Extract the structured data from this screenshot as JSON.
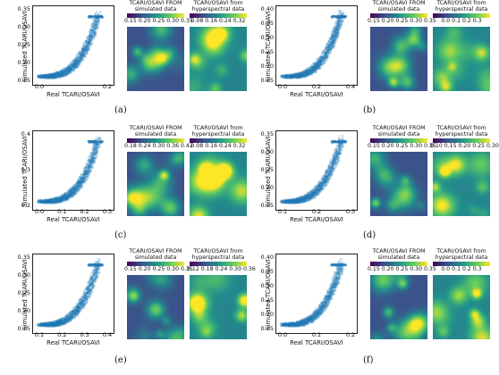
{
  "panels": [
    {
      "id": "a",
      "label": "(a)",
      "xlabel": "Real TCARI/OSAVI",
      "ylabel": "Simulated TCARI/OSAVI",
      "yticks": [
        "0.35",
        "0.30",
        "0.25",
        "0.20",
        "0.15"
      ],
      "xticks": [
        "0.0",
        "0.2"
      ],
      "map1": {
        "title1": "TCARI/OSAVI FROM",
        "title2": "simulated data",
        "ticks": "0.15 0.20 0.25 0.30 0.35"
      },
      "map2": {
        "title1": "TCARI/OSAVI from",
        "title2": "hyperspectral data",
        "ticks": "0.08 0.16 0.24 0.32"
      }
    },
    {
      "id": "b",
      "label": "(b)",
      "xlabel": "Real TCARI/OSAVI",
      "ylabel": "Simulated TCARI/OSAVI",
      "yticks": [
        "0.40",
        "0.35",
        "0.30",
        "0.25",
        "0.20",
        "0.15"
      ],
      "xticks": [
        "0.0",
        "0.2",
        "0.4"
      ],
      "map1": {
        "title1": "TCARI/OSAVI FROM",
        "title2": "simulated data",
        "ticks": "0.15 0.20 0.25 0.30 0.35"
      },
      "map2": {
        "title1": "TCARI/OSAVI from",
        "title2": "hyperspectral data",
        "ticks": "0.0  0.1  0.2  0.3"
      }
    },
    {
      "id": "c",
      "label": "(c)",
      "xlabel": "Real TCARI/OSAVI",
      "ylabel": "Simulated TCARI/OSAVI",
      "yticks": [
        "0.4",
        "0.3",
        "0.2"
      ],
      "xticks": [
        "0.0",
        "0.1",
        "0.2",
        "0.3"
      ],
      "map1": {
        "title1": "TCARI/OSAVI FROM",
        "title2": "simulated data",
        "ticks": "0.18 0.24 0.30 0.36 0.42"
      },
      "map2": {
        "title1": "TCARI/OSAVI from",
        "title2": "hyperspectral data",
        "ticks": "0.08 0.16 0.24 0.32"
      }
    },
    {
      "id": "d",
      "label": "(d)",
      "xlabel": "Real TCARI/OSAVI",
      "ylabel": "Simulated TCARI/OSAVI",
      "yticks": [
        "0.35",
        "0.30",
        "0.25",
        "0.20",
        "0.15"
      ],
      "xticks": [
        "0.1",
        "0.2",
        "0.3"
      ],
      "map1": {
        "title1": "TCARI/OSAVI FROM",
        "title2": "simulated data",
        "ticks": "0.15 0.20 0.25 0.30 0.35"
      },
      "map2": {
        "title1": "TCARI/OSAVI from",
        "title2": "hyperspectral data",
        "ticks": "0.10 0.15 0.20 0.25 0.30"
      }
    },
    {
      "id": "e",
      "label": "(e)",
      "xlabel": "Real TCARI/OSAVI",
      "ylabel": "Simulated TCARI/OSAVI",
      "yticks": [
        "0.35",
        "0.30",
        "0.25",
        "0.20",
        "0.15"
      ],
      "xticks": [
        "0.1",
        "0.2",
        "0.3",
        "0.4"
      ],
      "map1": {
        "title1": "TCARI/OSAVI FROM",
        "title2": "simulated data",
        "ticks": "0.15 0.20 0.25 0.30 0.35"
      },
      "map2": {
        "title1": "TCARI/OSAVI from",
        "title2": "hyperspectral data",
        "ticks": "0.12 0.18 0.24 0.30 0.36"
      }
    },
    {
      "id": "f",
      "label": "(f)",
      "xlabel": "Real TCARI/OSAVI",
      "ylabel": "Simulated TCARI/OSAVI",
      "yticks": [
        "0.40",
        "0.35",
        "0.30",
        "0.25",
        "0.20",
        "0.15"
      ],
      "xticks": [
        "0.0",
        "0.1",
        "0.2"
      ],
      "map1": {
        "title1": "TCARI/OSAVI FROM",
        "title2": "simulated data",
        "ticks": "0.15 0.20 0.25 0.30 0.35"
      },
      "map2": {
        "title1": "TCARI/OSAVI from",
        "title2": "hyperspectral data",
        "ticks": "0.0   0.1   0.2   0.3"
      }
    }
  ],
  "colors": {
    "scatter": "#1f77b4",
    "viridis": [
      "#440154",
      "#3b528b",
      "#21908d",
      "#5dc962",
      "#fde725"
    ]
  }
}
